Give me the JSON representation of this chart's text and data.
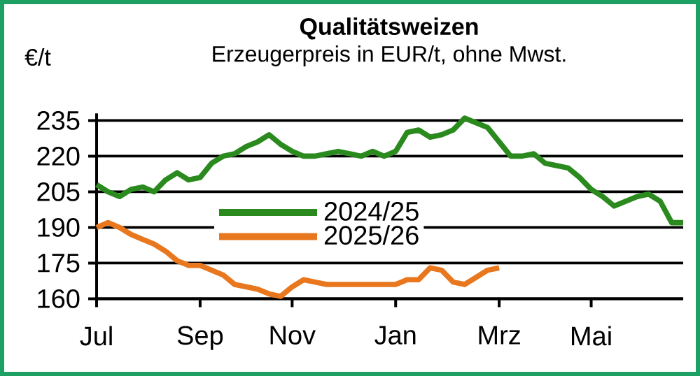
{
  "chart_data": {
    "type": "line",
    "title": "Qualitätsweizen",
    "subtitle": "Erzeugerpreis in EUR/t, ohne Mwst.",
    "ylabel": "€/t",
    "categories": [
      "Jul",
      null,
      null,
      null,
      null,
      null,
      null,
      null,
      null,
      "Sep",
      null,
      null,
      null,
      null,
      null,
      null,
      null,
      "Nov",
      null,
      null,
      null,
      null,
      null,
      null,
      null,
      null,
      "Jan",
      null,
      null,
      null,
      null,
      null,
      null,
      null,
      null,
      "Mrz",
      null,
      null,
      null,
      null,
      null,
      null,
      null,
      "Mai",
      null,
      null,
      null,
      null,
      null,
      null,
      null,
      null
    ],
    "ylim": [
      160,
      238
    ],
    "yticks": [
      160,
      175,
      190,
      205,
      220,
      235
    ],
    "grid": "y",
    "legend": "center",
    "marker": "none",
    "line_style": "solid",
    "series": [
      {
        "name": "2024/25",
        "color": "#2a8a1e",
        "values": [
          208,
          205,
          203,
          206,
          207,
          205,
          210,
          213,
          210,
          211,
          217,
          220,
          221,
          224,
          226,
          229,
          225,
          222,
          220,
          220,
          221,
          222,
          221,
          220,
          222,
          220,
          222,
          230,
          231,
          228,
          229,
          231,
          236,
          234,
          232,
          226,
          220,
          220,
          221,
          217,
          216,
          215,
          211,
          206,
          203,
          199,
          201,
          203,
          204,
          201,
          192,
          192
        ]
      },
      {
        "name": "2025/26",
        "color": "#e8771e",
        "values": [
          190,
          192,
          190,
          187,
          185,
          183,
          180,
          176,
          174,
          174,
          172,
          170,
          166,
          165,
          164,
          162,
          161,
          165,
          168,
          167,
          166,
          166,
          166,
          166,
          166,
          166,
          166,
          168,
          168,
          173,
          172,
          167,
          166,
          169,
          172,
          173,
          null,
          null,
          null,
          null,
          null,
          null,
          null,
          null,
          null,
          null,
          null,
          null,
          null,
          null,
          null,
          null
        ]
      }
    ]
  }
}
